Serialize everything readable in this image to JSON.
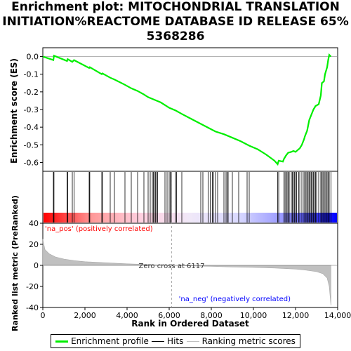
{
  "title_lines": [
    "Enrichment plot: MITOCHONDRIAL TRANSLATION",
    "INITIATION%REACTOME DATABASE ID RELEASE 65%",
    "5368286"
  ],
  "colors": {
    "enrichment_line": "#00ee00",
    "hits": "#000000",
    "ranking": "#c0c0c0",
    "pos_label": "#ff0000",
    "neg_label": "#0000ff"
  },
  "chart_data": {
    "type": "line",
    "xlabel": "Rank in Ordered Dataset",
    "xlim": [
      0,
      14000
    ],
    "x_ticks": [
      0,
      2000,
      4000,
      6000,
      8000,
      10000,
      12000,
      14000
    ],
    "x_tick_labels": [
      "0",
      "2,000",
      "4,000",
      "6,000",
      "8,000",
      "10,000",
      "12,000",
      "14,000"
    ],
    "es_panel": {
      "ylabel": "Enrichment score (ES)",
      "ylim": [
        -0.65,
        0.05
      ],
      "y_ticks": [
        0.0,
        -0.1,
        -0.2,
        -0.3,
        -0.4,
        -0.5,
        -0.6
      ],
      "y_tick_labels": [
        "0.0",
        "-0.1",
        "-0.2",
        "-0.3",
        "-0.4",
        "-0.5",
        "-0.6"
      ],
      "series": [
        {
          "name": "Enrichment profile",
          "points": [
            [
              0,
              0.0
            ],
            [
              500,
              -0.02
            ],
            [
              530,
              0.005
            ],
            [
              1150,
              -0.025
            ],
            [
              1180,
              -0.015
            ],
            [
              1400,
              -0.03
            ],
            [
              1480,
              -0.02
            ],
            [
              2200,
              -0.065
            ],
            [
              2230,
              -0.06
            ],
            [
              2800,
              -0.1
            ],
            [
              2830,
              -0.095
            ],
            [
              3200,
              -0.12
            ],
            [
              3400,
              -0.13
            ],
            [
              3900,
              -0.16
            ],
            [
              4200,
              -0.18
            ],
            [
              4500,
              -0.195
            ],
            [
              4800,
              -0.215
            ],
            [
              5000,
              -0.23
            ],
            [
              5200,
              -0.24
            ],
            [
              5400,
              -0.25
            ],
            [
              5600,
              -0.26
            ],
            [
              5800,
              -0.275
            ],
            [
              6000,
              -0.29
            ],
            [
              6300,
              -0.305
            ],
            [
              6600,
              -0.325
            ],
            [
              7000,
              -0.35
            ],
            [
              7400,
              -0.375
            ],
            [
              7800,
              -0.4
            ],
            [
              8200,
              -0.425
            ],
            [
              8600,
              -0.44
            ],
            [
              9000,
              -0.46
            ],
            [
              9400,
              -0.48
            ],
            [
              9800,
              -0.505
            ],
            [
              10200,
              -0.525
            ],
            [
              10600,
              -0.555
            ],
            [
              11000,
              -0.59
            ],
            [
              11150,
              -0.61
            ],
            [
              11200,
              -0.59
            ],
            [
              11400,
              -0.595
            ],
            [
              11450,
              -0.58
            ],
            [
              11550,
              -0.56
            ],
            [
              11650,
              -0.545
            ],
            [
              11800,
              -0.54
            ],
            [
              11900,
              -0.535
            ],
            [
              12000,
              -0.54
            ],
            [
              12100,
              -0.53
            ],
            [
              12200,
              -0.52
            ],
            [
              12300,
              -0.5
            ],
            [
              12400,
              -0.47
            ],
            [
              12450,
              -0.45
            ],
            [
              12550,
              -0.42
            ],
            [
              12600,
              -0.39
            ],
            [
              12650,
              -0.36
            ],
            [
              12750,
              -0.33
            ],
            [
              12850,
              -0.3
            ],
            [
              12950,
              -0.28
            ],
            [
              13100,
              -0.27
            ],
            [
              13200,
              -0.22
            ],
            [
              13250,
              -0.15
            ],
            [
              13350,
              -0.14
            ],
            [
              13400,
              -0.1
            ],
            [
              13500,
              -0.06
            ],
            [
              13550,
              -0.02
            ],
            [
              13600,
              0.01
            ],
            [
              13680,
              0.0
            ]
          ]
        }
      ]
    },
    "hits_panel": {
      "legend_label": "Hits",
      "hit_ranks": [
        500,
        530,
        1150,
        1180,
        1400,
        1480,
        2200,
        2230,
        2800,
        2830,
        3200,
        3400,
        3900,
        4200,
        4500,
        4800,
        5000,
        5100,
        5200,
        5250,
        5300,
        5350,
        5400,
        5450,
        5800,
        5900,
        6000,
        6050,
        6100,
        6300,
        6350,
        6600,
        7500,
        7600,
        7850,
        7950,
        8050,
        8100,
        8200,
        8300,
        8600,
        8700,
        8750,
        8800,
        9000,
        9300,
        9700,
        9800,
        11150,
        11200,
        11450,
        11500,
        11550,
        11600,
        11650,
        11700,
        11800,
        11850,
        11900,
        11950,
        12000,
        12050,
        12150,
        12200,
        12300,
        12400,
        12450,
        12500,
        12550,
        12600,
        12650,
        12700,
        12750,
        12800,
        12850,
        12900,
        12950,
        13000,
        13100,
        13200,
        13250,
        13300,
        13350,
        13400,
        13450,
        13500,
        13550,
        13600,
        13680
      ]
    },
    "ranking_panel": {
      "ylabel": "Ranked list metric (PreRanked)",
      "ylim": [
        -40,
        40
      ],
      "y_ticks": [
        40,
        20,
        0,
        -20,
        -40
      ],
      "y_tick_labels": [
        "40",
        "20",
        "0",
        "-20",
        "-40"
      ],
      "legend_label": "Ranking metric scores",
      "metric_points": [
        [
          0,
          25
        ],
        [
          100,
          15
        ],
        [
          300,
          11
        ],
        [
          600,
          8
        ],
        [
          1000,
          6
        ],
        [
          1500,
          4.5
        ],
        [
          2000,
          3.5
        ],
        [
          3000,
          2.5
        ],
        [
          4000,
          1.5
        ],
        [
          5000,
          0.8
        ],
        [
          6117,
          0
        ],
        [
          7000,
          -0.5
        ],
        [
          8000,
          -1
        ],
        [
          9000,
          -1.5
        ],
        [
          10000,
          -2
        ],
        [
          11000,
          -2.5
        ],
        [
          12000,
          -3.5
        ],
        [
          12500,
          -4.5
        ],
        [
          13000,
          -6
        ],
        [
          13300,
          -8
        ],
        [
          13500,
          -12
        ],
        [
          13600,
          -20
        ],
        [
          13680,
          -38
        ]
      ]
    },
    "annotations": {
      "pos_label": "'na_pos' (positively correlated)",
      "neg_label": "'na_neg' (negatively correlated)",
      "zero_cross": "Zero cross at 6117",
      "zero_cross_rank": 6117
    },
    "legend": [
      "Enrichment profile",
      "Hits",
      "Ranking metric scores"
    ],
    "legend_placement": "bottom"
  }
}
